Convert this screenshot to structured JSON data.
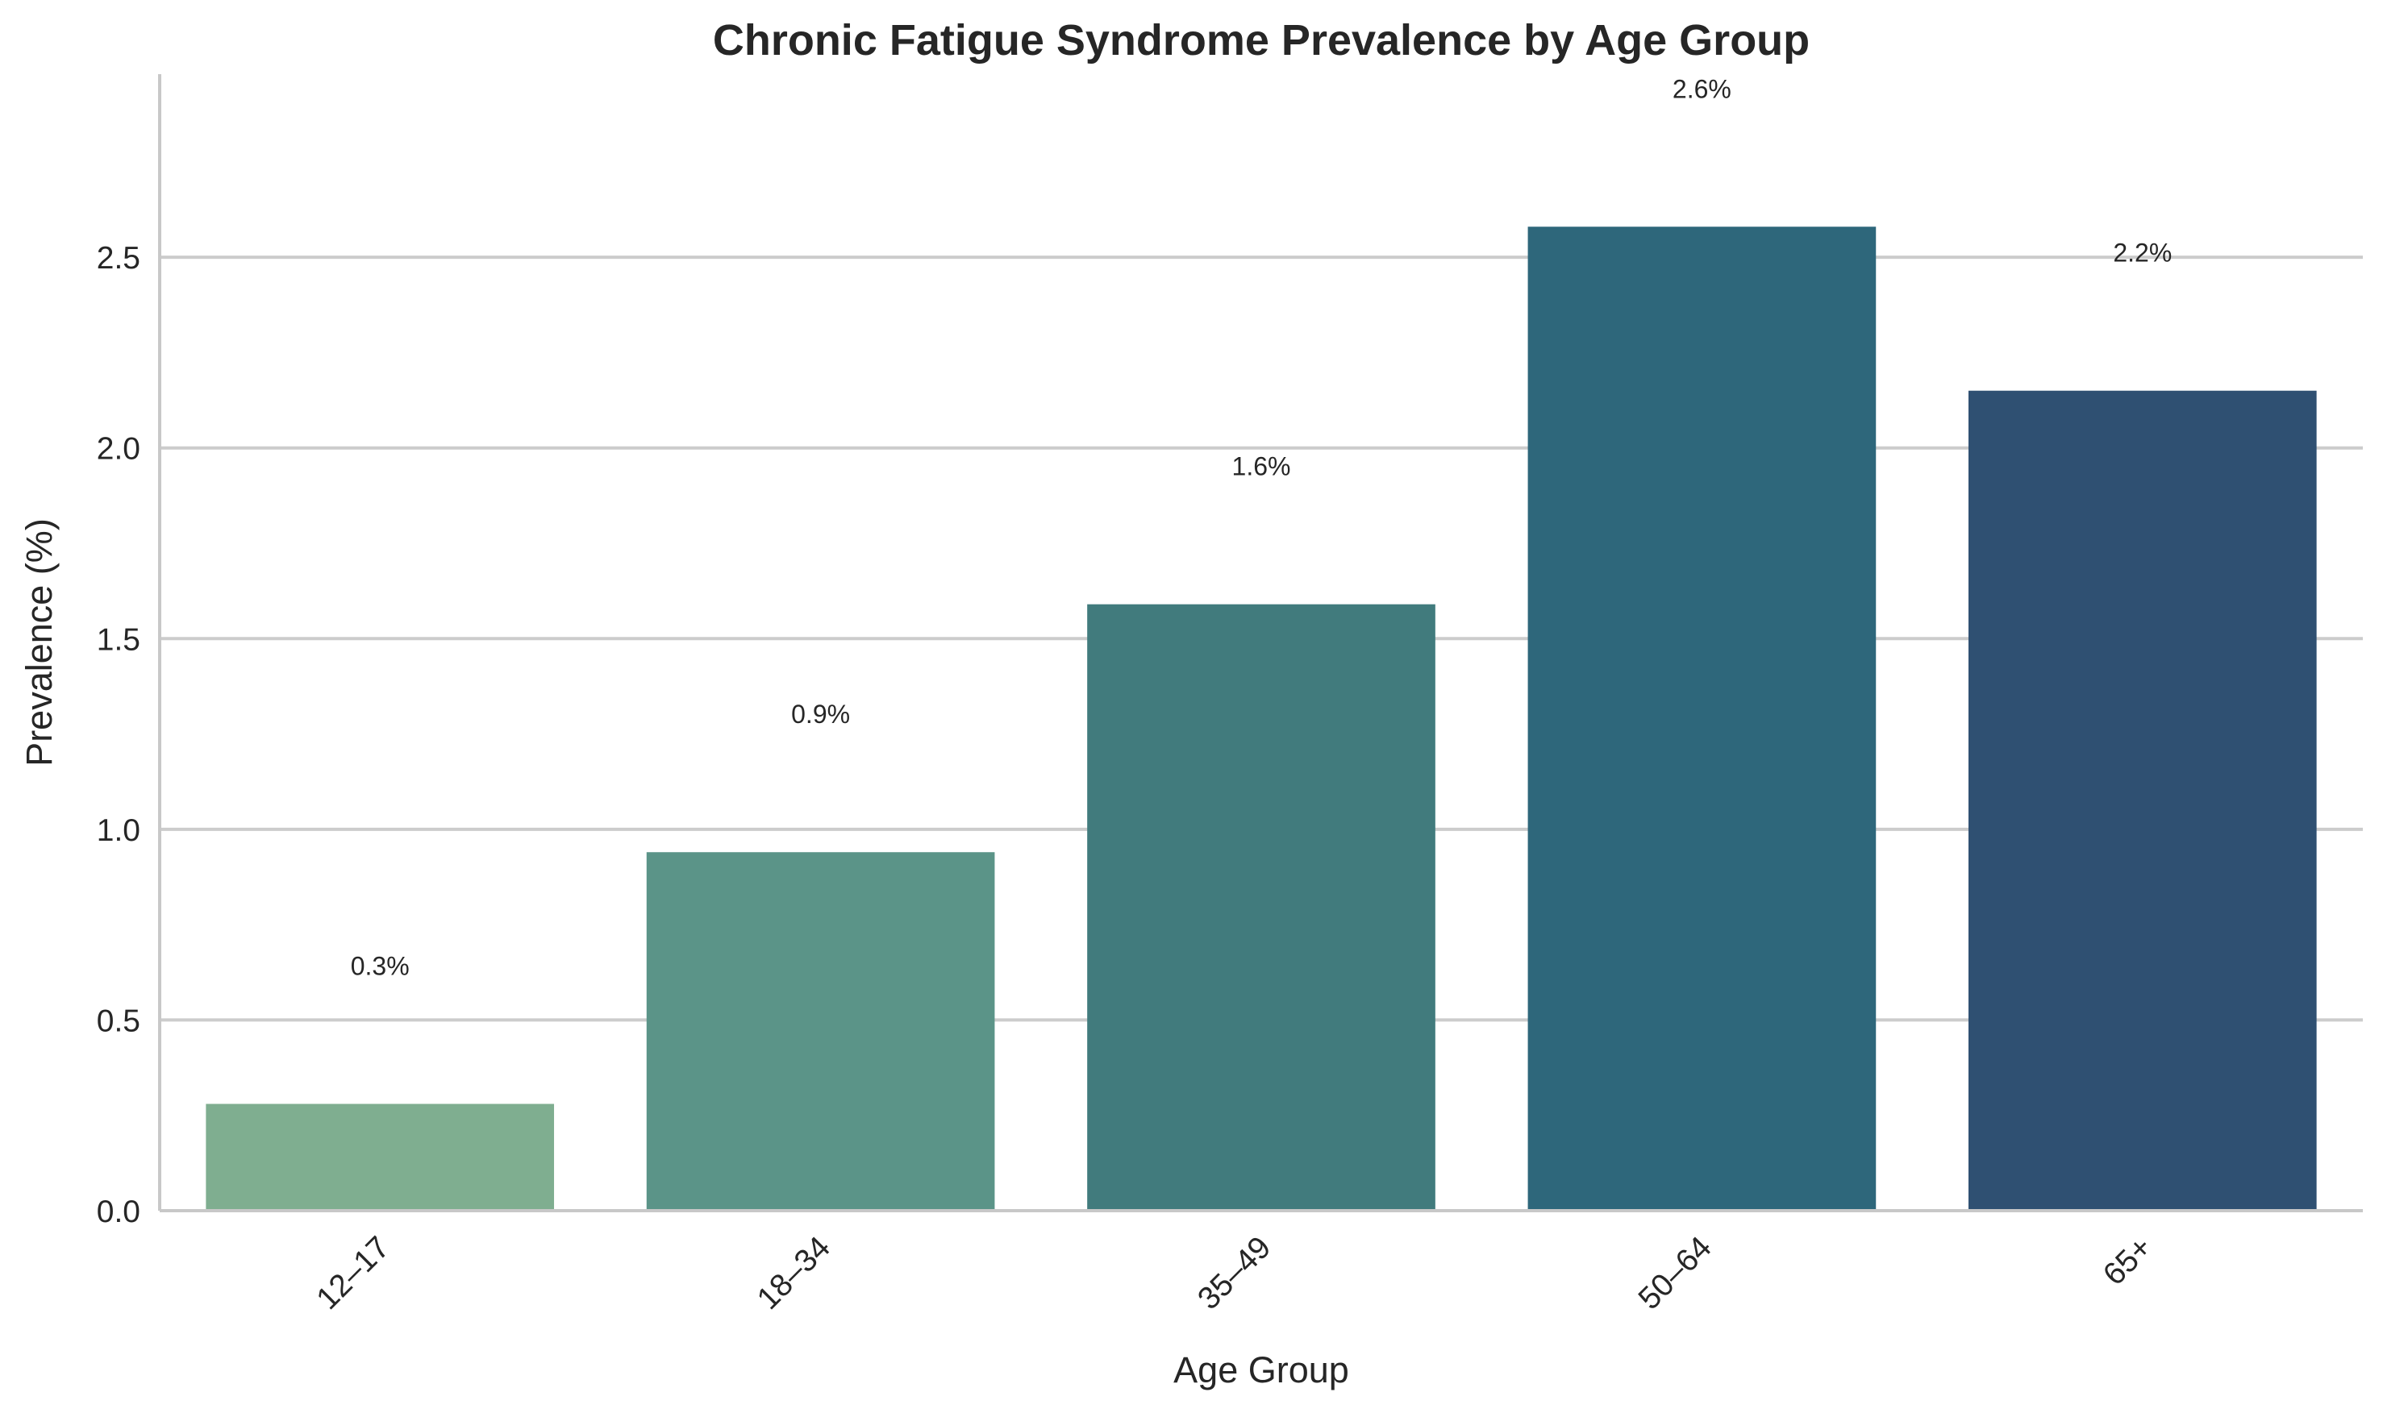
{
  "chart_data": {
    "type": "bar",
    "title": "Chronic Fatigue Syndrome Prevalence by Age Group",
    "xlabel": "Age Group",
    "ylabel": "Prevalence (%)",
    "categories": [
      "12–17",
      "18–34",
      "35–49",
      "50–64",
      "65+"
    ],
    "values": [
      0.28,
      0.94,
      1.59,
      2.58,
      2.15
    ],
    "data_labels": [
      "0.3%",
      "0.9%",
      "1.6%",
      "2.6%",
      "2.2%"
    ],
    "colors": [
      "#7fae90",
      "#5b9488",
      "#417b7d",
      "#2e677b",
      "#2f5072"
    ],
    "ylim": [
      0,
      2.98
    ],
    "yticks": [
      0.0,
      0.5,
      1.0,
      1.5,
      2.0,
      2.5
    ],
    "ytick_labels": [
      "0.0",
      "0.5",
      "1.0",
      "1.5",
      "2.0",
      "2.5"
    ],
    "grid": "horizontal",
    "legend": "none"
  }
}
